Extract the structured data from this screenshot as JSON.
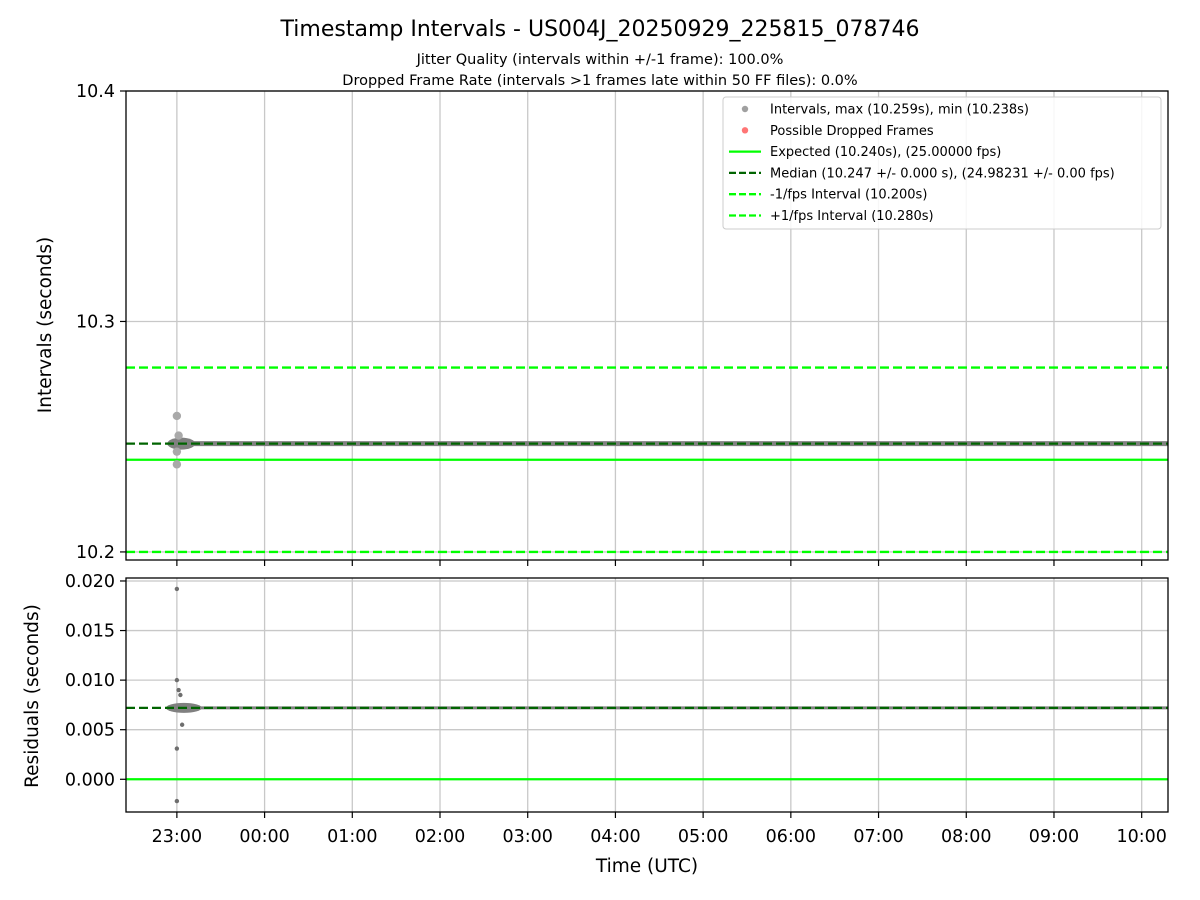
{
  "chart_data": {
    "type": "scatter",
    "title": "Timestamp Intervals - US004J_20250929_225815_078746",
    "subtitle_1": "Jitter Quality (intervals within +/-1 frame): 100.0%",
    "subtitle_2": "Dropped Frame Rate (intervals >1 frames late within 50 FF files): 0.0%",
    "xlabel": "Time (UTC)",
    "x_tick_labels": [
      "23:00",
      "00:00",
      "01:00",
      "02:00",
      "03:00",
      "04:00",
      "05:00",
      "06:00",
      "07:00",
      "08:00",
      "09:00",
      "10:00"
    ],
    "x_range_hours": [
      -0.58,
      11.3
    ],
    "top_panel": {
      "ylabel": "Intervals (seconds)",
      "ylim": [
        10.1965,
        10.4
      ],
      "y_ticks": [
        10.2,
        10.3,
        10.4
      ],
      "y_tick_labels": [
        "10.2",
        "10.3",
        "10.4"
      ],
      "expected": 10.24,
      "median": 10.247,
      "minus_fps": 10.2,
      "plus_fps": 10.28,
      "max": 10.259,
      "min": 10.238
    },
    "bottom_panel": {
      "ylabel": "Residuals (seconds)",
      "ylim": [
        -0.0033,
        0.0203
      ],
      "y_ticks": [
        0.0,
        0.005,
        0.01,
        0.015,
        0.02
      ],
      "y_tick_labels": [
        "0.000",
        "0.005",
        "0.010",
        "0.015",
        "0.020"
      ],
      "zero_line": 0.0,
      "median_residual": 0.0072
    },
    "scatter_notes": "Dense series sits on the median; transient spread near 23:00.",
    "legend": [
      {
        "label": "Intervals, max (10.259s), min (10.238s)",
        "kind": "marker",
        "color": "#a0a0a0"
      },
      {
        "label": "Possible Dropped Frames",
        "kind": "marker",
        "color": "#ff6666"
      },
      {
        "label": "Expected (10.240s), (25.00000 fps)",
        "kind": "solid",
        "color": "#00ff00"
      },
      {
        "label": "Median (10.247 +/- 0.000 s), (24.98231 +/- 0.00 fps)",
        "kind": "dashed",
        "color": "#006400"
      },
      {
        "label": "-1/fps Interval (10.200s)",
        "kind": "dashed",
        "color": "#00ff00"
      },
      {
        "label": "+1/fps Interval (10.280s)",
        "kind": "dashed",
        "color": "#00ff00"
      }
    ],
    "outliers_top": [
      {
        "t": 0.0,
        "v": 10.259
      },
      {
        "t": 0.0,
        "v": 10.238
      },
      {
        "t": 0.0,
        "v": 10.2435
      },
      {
        "t": 0.02,
        "v": 10.2505
      }
    ],
    "outliers_bottom": [
      {
        "t": 0.0,
        "r": 0.0192
      },
      {
        "t": 0.0,
        "r": 0.01
      },
      {
        "t": 0.0,
        "r": 0.0031
      },
      {
        "t": 0.0,
        "r": -0.0022
      },
      {
        "t": 0.02,
        "r": 0.009
      },
      {
        "t": 0.04,
        "r": 0.0085
      },
      {
        "t": 0.06,
        "r": 0.0055
      }
    ],
    "colors": {
      "intervals": "#808080",
      "intervals_light": "#a9a9a9",
      "expected": "#00ff00",
      "median": "#006400",
      "grid": "#c8c8c8",
      "axis": "#000000"
    }
  }
}
